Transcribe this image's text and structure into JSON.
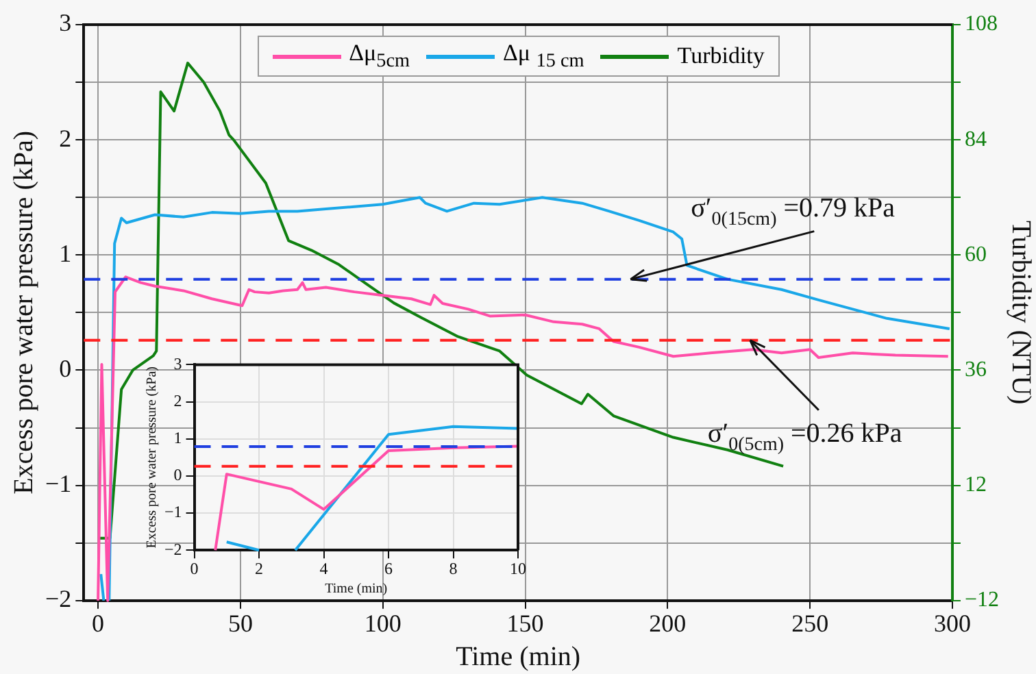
{
  "chart_data": [
    {
      "type": "line",
      "xlabel": "Time (min)",
      "ylabel": "Excess pore water pressure (kPa)",
      "y2label": "Turbidity (NTU)",
      "xlim": [
        -5,
        300
      ],
      "xticks": [
        0,
        50,
        100,
        150,
        200,
        250,
        300
      ],
      "ylim": [
        -2,
        3
      ],
      "yticks": [
        {
          "value": -2,
          "label": "−2"
        },
        {
          "value": -1.5,
          "label": null
        },
        {
          "value": -1,
          "label": "−1"
        },
        {
          "value": -0.5,
          "label": null
        },
        0,
        {
          "value": 0.5,
          "label": null
        },
        1,
        {
          "value": 1.5,
          "label": null
        },
        2,
        {
          "value": 2.5,
          "label": null
        },
        3
      ],
      "y2lim": [
        -12,
        108
      ],
      "y2ticks": [
        {
          "value": -12,
          "label": "−12"
        },
        {
          "value": 0,
          "label": null
        },
        12,
        {
          "value": 24,
          "label": null
        },
        36,
        {
          "value": 48,
          "label": null
        },
        60,
        {
          "value": 72,
          "label": null
        },
        84,
        {
          "value": 96,
          "label": null
        },
        108
      ],
      "grid": true,
      "legend": "top",
      "line_style": "solid",
      "series": [
        {
          "name": "Δμ$_{5cm}$",
          "color": "#ff4fa8",
          "x": [
            0,
            1.3,
            3.4,
            6,
            9.7,
            15,
            20,
            30,
            40,
            50.6,
            53,
            55,
            60,
            65,
            70,
            71.8,
            73,
            80,
            90,
            100,
            110,
            116.7,
            118,
            121,
            130,
            137.6,
            150,
            160,
            170,
            176,
            181,
            190,
            202,
            215,
            230,
            240,
            250,
            253,
            265,
            280,
            298.5
          ],
          "values": [
            -2,
            0.05,
            -2,
            0.68,
            0.81,
            0.76,
            0.73,
            0.69,
            0.62,
            0.56,
            0.7,
            0.68,
            0.67,
            0.69,
            0.7,
            0.76,
            0.7,
            0.72,
            0.68,
            0.65,
            0.62,
            0.57,
            0.65,
            0.58,
            0.53,
            0.47,
            0.48,
            0.42,
            0.4,
            0.36,
            0.25,
            0.2,
            0.12,
            0.15,
            0.18,
            0.15,
            0.18,
            0.11,
            0.15,
            0.13,
            0.12
          ]
        },
        {
          "name": "Δμ $_{15 cm}$",
          "color": "#1aa7e8",
          "x": [
            1,
            2,
            3,
            3.9,
            5.8,
            8.2,
            10,
            20,
            30,
            40,
            50,
            60,
            70,
            80,
            90,
            100,
            113,
            115,
            122.5,
            132,
            141,
            156,
            170,
            179.5,
            190,
            202,
            205,
            206.8,
            221,
            240,
            253,
            265,
            277,
            299
          ],
          "values": [
            -1.77,
            -2,
            null,
            -2,
            1.1,
            1.32,
            1.28,
            1.35,
            1.33,
            1.37,
            1.36,
            1.38,
            1.38,
            1.4,
            1.42,
            1.44,
            1.5,
            1.45,
            1.38,
            1.45,
            1.44,
            1.5,
            1.45,
            1.38,
            1.3,
            1.2,
            1.14,
            0.91,
            0.79,
            0.7,
            0.61,
            0.53,
            0.45,
            0.36
          ]
        },
        {
          "name": "Turbidity",
          "color": "#118011",
          "axis": "y2",
          "x": [
            0,
            4.2,
            8.2,
            12.2,
            17,
            19.4,
            20.5,
            22,
            26.7,
            31.5,
            37.1,
            42.8,
            46,
            47.6,
            58.9,
            66.9,
            74.9,
            84.6,
            94.2,
            103.9,
            113.4,
            126.4,
            141,
            150.5,
            169.8,
            172,
            181,
            202,
            221,
            240.6
          ],
          "values": [
            1,
            1,
            32,
            36,
            38,
            39,
            40,
            94,
            90,
            100,
            96,
            90,
            85,
            84,
            75,
            63,
            61,
            58,
            54,
            50,
            47,
            43,
            40,
            35,
            29,
            31,
            26.5,
            22,
            19.4,
            16
          ]
        }
      ],
      "ref_lines": [
        {
          "axis": "y",
          "value": 0.79,
          "color": "#1f3fe0",
          "line_style": "dashed"
        },
        {
          "axis": "y",
          "value": 0.26,
          "color": "#ff2020",
          "line_style": "dashed"
        }
      ],
      "annotations": [
        {
          "text": "σ′$_{0(15cm)}$ =0.79 kPa",
          "x": 187,
          "y": 0.79
        },
        {
          "text": "σ′$_{0(5cm)}$ =0.26 kPa",
          "x": 229,
          "y": 0.26
        }
      ]
    },
    {
      "type": "line",
      "xlabel": "Time (min)",
      "ylabel": "Excess pore water pressure (kPa)",
      "xlim": [
        0,
        10
      ],
      "xticks": [
        0,
        2,
        4,
        6,
        8,
        10
      ],
      "ylim": [
        -2,
        3
      ],
      "yticks": [
        {
          "value": -2,
          "label": "−2"
        },
        {
          "value": -1,
          "label": "−1"
        },
        0,
        1,
        2,
        3
      ],
      "grid": true,
      "line_style": "solid",
      "series": [
        {
          "color": "#ff4fa8",
          "x": [
            0.65,
            1,
            3,
            4,
            6,
            8,
            10
          ],
          "values": [
            -2,
            0.05,
            -0.35,
            -0.9,
            0.68,
            0.76,
            0.8
          ]
        },
        {
          "color": "#1aa7e8",
          "x": [
            1,
            2,
            2.5,
            3.12,
            6,
            8,
            10
          ],
          "values": [
            -1.78,
            -2,
            null,
            -2,
            1.12,
            1.33,
            1.28
          ]
        }
      ],
      "ref_lines": [
        {
          "axis": "y",
          "value": 0.79,
          "color": "#1f3fe0",
          "line_style": "dashed"
        },
        {
          "axis": "y",
          "value": 0.26,
          "color": "#ff2020",
          "line_style": "dashed"
        }
      ]
    }
  ]
}
